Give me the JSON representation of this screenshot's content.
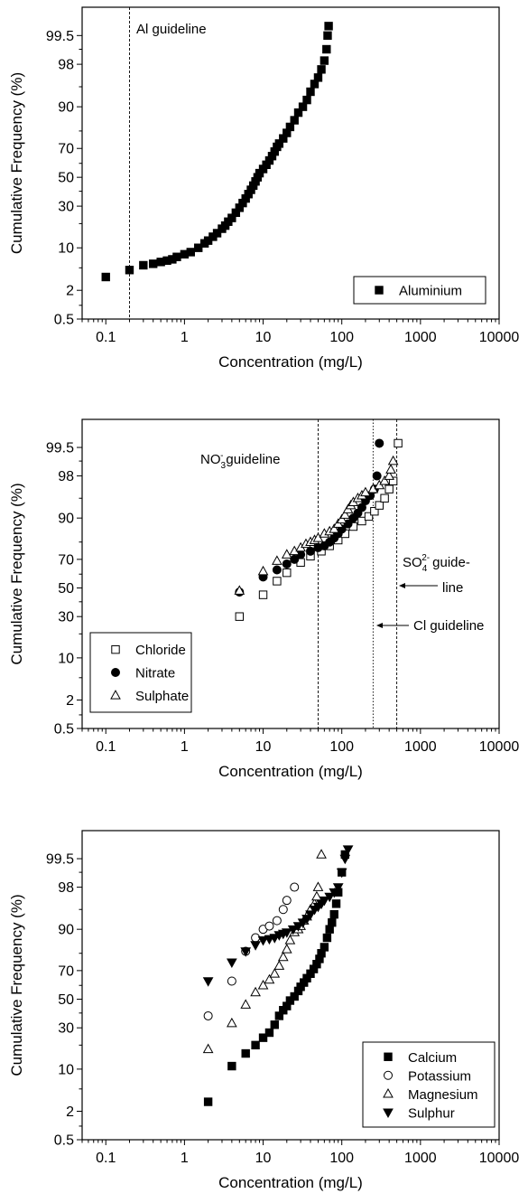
{
  "chart_data": [
    {
      "type": "scatter",
      "x_scale": "log",
      "y_scale": "probability",
      "xlabel": "Concentration (mg/L)",
      "ylabel": "Cumulative Frequency (%)",
      "xlim": [
        0.05,
        10000
      ],
      "ylim": [
        0.5,
        99.9
      ],
      "x_ticks": [
        "0.1",
        "1",
        "10",
        "100",
        "1000",
        "10000"
      ],
      "y_ticks": [
        "0.5",
        "2",
        "10",
        "30",
        "50",
        "70",
        "90",
        "98",
        "99.5"
      ],
      "legend_position": "bottom-right",
      "series": [
        {
          "name": "Aluminium",
          "marker": "filled-square",
          "points": [
            [
              0.1,
              3.5
            ],
            [
              0.2,
              4.6
            ],
            [
              0.3,
              5.5
            ],
            [
              0.4,
              5.8
            ],
            [
              0.5,
              6.2
            ],
            [
              0.6,
              6.5
            ],
            [
              0.7,
              6.8
            ],
            [
              0.8,
              7.4
            ],
            [
              1.0,
              8.1
            ],
            [
              1.2,
              8.7
            ],
            [
              1.5,
              10
            ],
            [
              1.8,
              11.5
            ],
            [
              2.0,
              12.5
            ],
            [
              2.3,
              14
            ],
            [
              2.6,
              15.5
            ],
            [
              3.0,
              17.5
            ],
            [
              3.3,
              19
            ],
            [
              3.6,
              21
            ],
            [
              4.0,
              23
            ],
            [
              4.5,
              26
            ],
            [
              5.0,
              29
            ],
            [
              5.5,
              32
            ],
            [
              6.0,
              35
            ],
            [
              6.5,
              38
            ],
            [
              7.0,
              41
            ],
            [
              7.5,
              44
            ],
            [
              8.0,
              47
            ],
            [
              8.5,
              50
            ],
            [
              9.0,
              53
            ],
            [
              10,
              56
            ],
            [
              11,
              59
            ],
            [
              12,
              62
            ],
            [
              13,
              65
            ],
            [
              14,
              68
            ],
            [
              15,
              71
            ],
            [
              16,
              73
            ],
            [
              18,
              76
            ],
            [
              20,
              79
            ],
            [
              22,
              82
            ],
            [
              25,
              85
            ],
            [
              28,
              88
            ],
            [
              32,
              90
            ],
            [
              36,
              92
            ],
            [
              40,
              94
            ],
            [
              45,
              95.5
            ],
            [
              50,
              96.5
            ],
            [
              55,
              97.5
            ],
            [
              60,
              98.3
            ],
            [
              64,
              99
            ],
            [
              66,
              99.5
            ],
            [
              68,
              99.7
            ]
          ]
        }
      ],
      "guidelines": [
        {
          "label": "Al guideline",
          "x": 0.2
        }
      ]
    },
    {
      "type": "scatter",
      "x_scale": "log",
      "y_scale": "probability",
      "xlabel": "Concentration (mg/L)",
      "ylabel": "Cumulative Frequency (%)",
      "xlim": [
        0.05,
        10000
      ],
      "ylim": [
        0.5,
        99.9
      ],
      "x_ticks": [
        "0.1",
        "1",
        "10",
        "100",
        "1000",
        "10000"
      ],
      "y_ticks": [
        "0.5",
        "2",
        "10",
        "30",
        "50",
        "70",
        "90",
        "98",
        "99.5"
      ],
      "legend_position": "bottom-left",
      "series": [
        {
          "name": "Chloride",
          "marker": "open-square",
          "points": [
            [
              5,
              30
            ],
            [
              10,
              45
            ],
            [
              15,
              55
            ],
            [
              20,
              61
            ],
            [
              30,
              68
            ],
            [
              40,
              72
            ],
            [
              55,
              75
            ],
            [
              70,
              78
            ],
            [
              90,
              81
            ],
            [
              110,
              84
            ],
            [
              140,
              87
            ],
            [
              180,
              89
            ],
            [
              220,
              90.5
            ],
            [
              260,
              92
            ],
            [
              300,
              93.5
            ],
            [
              350,
              95
            ],
            [
              400,
              96.5
            ],
            [
              450,
              97.5
            ],
            [
              520,
              99.6
            ]
          ]
        },
        {
          "name": "Nitrate",
          "marker": "filled-circle",
          "points": [
            [
              5,
              47
            ],
            [
              10,
              58
            ],
            [
              15,
              63
            ],
            [
              20,
              67
            ],
            [
              25,
              70
            ],
            [
              30,
              73
            ],
            [
              40,
              75
            ],
            [
              50,
              77
            ],
            [
              60,
              78
            ],
            [
              70,
              80
            ],
            [
              80,
              82
            ],
            [
              90,
              84
            ],
            [
              100,
              86
            ],
            [
              120,
              88
            ],
            [
              140,
              90
            ],
            [
              160,
              91.5
            ],
            [
              180,
              93
            ],
            [
              200,
              94.5
            ],
            [
              230,
              95.5
            ],
            [
              260,
              96.5
            ],
            [
              280,
              98
            ],
            [
              300,
              99.6
            ]
          ]
        },
        {
          "name": "Sulphate",
          "marker": "open-triangle",
          "points": [
            [
              5,
              48
            ],
            [
              10,
              62
            ],
            [
              15,
              69
            ],
            [
              20,
              73
            ],
            [
              25,
              75
            ],
            [
              30,
              77
            ],
            [
              35,
              79
            ],
            [
              40,
              80
            ],
            [
              45,
              81
            ],
            [
              50,
              82
            ],
            [
              60,
              84
            ],
            [
              70,
              85
            ],
            [
              80,
              86
            ],
            [
              90,
              88
            ],
            [
              100,
              89.5
            ],
            [
              110,
              91
            ],
            [
              120,
              92.5
            ],
            [
              130,
              93.5
            ],
            [
              140,
              94.2
            ],
            [
              160,
              95
            ],
            [
              180,
              95.5
            ],
            [
              200,
              96
            ],
            [
              250,
              96.5
            ],
            [
              300,
              97
            ],
            [
              350,
              97.5
            ],
            [
              400,
              98
            ],
            [
              420,
              98.5
            ],
            [
              450,
              99
            ]
          ]
        }
      ],
      "guidelines": [
        {
          "label_main": "NO",
          "label_sub": "3",
          "label_sup": "-",
          "label_rest": "guideline",
          "x": 50
        },
        {
          "label": "Cl guideline",
          "x": 250
        },
        {
          "label_main": "SO",
          "label_sub": "4",
          "label_sup": "2-",
          "label_rest": "guide-",
          "label_line2": "line",
          "x": 500
        }
      ]
    },
    {
      "type": "scatter",
      "x_scale": "log",
      "y_scale": "probability",
      "xlabel": "Concentration (mg/L)",
      "ylabel": "Cumulative Frequency (%)",
      "xlim": [
        0.05,
        10000
      ],
      "ylim": [
        0.5,
        99.9
      ],
      "x_ticks": [
        "0.1",
        "1",
        "10",
        "100",
        "1000",
        "10000"
      ],
      "y_ticks": [
        "0.5",
        "2",
        "10",
        "30",
        "50",
        "70",
        "90",
        "98",
        "99.5"
      ],
      "legend_position": "bottom-right",
      "series": [
        {
          "name": "Calcium",
          "marker": "filled-square",
          "points": [
            [
              2,
              3
            ],
            [
              4,
              11
            ],
            [
              6,
              16
            ],
            [
              8,
              20
            ],
            [
              10,
              24
            ],
            [
              12,
              27
            ],
            [
              14,
              32
            ],
            [
              16,
              38
            ],
            [
              18,
              42
            ],
            [
              20,
              45
            ],
            [
              22,
              49
            ],
            [
              25,
              52
            ],
            [
              28,
              56
            ],
            [
              30,
              59
            ],
            [
              33,
              62
            ],
            [
              36,
              65
            ],
            [
              40,
              68
            ],
            [
              44,
              71
            ],
            [
              48,
              74
            ],
            [
              52,
              77
            ],
            [
              55,
              80
            ],
            [
              60,
              83
            ],
            [
              65,
              87
            ],
            [
              70,
              90
            ],
            [
              75,
              92
            ],
            [
              80,
              94
            ],
            [
              85,
              96
            ],
            [
              90,
              97.5
            ],
            [
              100,
              99
            ],
            [
              110,
              99.6
            ]
          ]
        },
        {
          "name": "Potassium",
          "marker": "open-circle",
          "points": [
            [
              2,
              38
            ],
            [
              4,
              63
            ],
            [
              6,
              81
            ],
            [
              8,
              87
            ],
            [
              10,
              90
            ],
            [
              12,
              91
            ],
            [
              15,
              92.5
            ],
            [
              18,
              95
            ],
            [
              20,
              96.5
            ],
            [
              25,
              98
            ]
          ]
        },
        {
          "name": "Magnesium",
          "marker": "open-triangle",
          "points": [
            [
              2,
              18
            ],
            [
              4,
              33
            ],
            [
              6,
              46
            ],
            [
              8,
              55
            ],
            [
              10,
              60
            ],
            [
              12,
              64
            ],
            [
              14,
              68
            ],
            [
              16,
              73
            ],
            [
              18,
              78
            ],
            [
              20,
              82
            ],
            [
              22,
              86
            ],
            [
              25,
              89
            ],
            [
              28,
              90
            ],
            [
              30,
              91
            ],
            [
              33,
              92.5
            ],
            [
              36,
              93.5
            ],
            [
              40,
              95
            ],
            [
              45,
              96
            ],
            [
              48,
              97
            ],
            [
              50,
              98
            ],
            [
              55,
              99.6
            ]
          ]
        },
        {
          "name": "Sulphur",
          "marker": "filled-triangle-down",
          "points": [
            [
              2,
              63
            ],
            [
              4,
              75
            ],
            [
              6,
              81
            ],
            [
              8,
              84
            ],
            [
              10,
              86
            ],
            [
              12,
              86.5
            ],
            [
              14,
              87
            ],
            [
              16,
              88
            ],
            [
              18,
              88.5
            ],
            [
              20,
              89
            ],
            [
              24,
              90
            ],
            [
              28,
              91
            ],
            [
              32,
              92
            ],
            [
              36,
              93
            ],
            [
              40,
              94
            ],
            [
              45,
              95
            ],
            [
              50,
              95.5
            ],
            [
              55,
              96
            ],
            [
              60,
              96.5
            ],
            [
              70,
              97
            ],
            [
              80,
              97.5
            ],
            [
              90,
              98
            ],
            [
              100,
              99
            ],
            [
              110,
              99.5
            ],
            [
              120,
              99.7
            ]
          ]
        }
      ],
      "guidelines": []
    }
  ]
}
